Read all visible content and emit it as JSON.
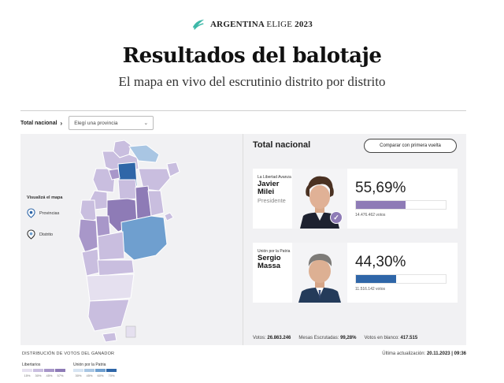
{
  "brand": {
    "name_bold": "ARGENTINA",
    "name_light": "ELIGE",
    "year": "2023"
  },
  "page": {
    "title": "Resultados del balotaje",
    "subtitle": "El mapa en vivo del escrutinio distrito por distrito"
  },
  "filters": {
    "scope_label": "Total nacional",
    "province_select": "Elegí una provincia"
  },
  "map_view": {
    "title": "Visualizá el mapa",
    "options": [
      "Provincias",
      "Distrito"
    ]
  },
  "results": {
    "heading": "Total nacional",
    "compare_button": "Comparar con primera vuelta",
    "candidates": [
      {
        "party": "La Libertad Avanza",
        "first_name": "Javier",
        "last_name": "Milei",
        "role": "Presidente",
        "percent_label": "55,69%",
        "percent": 55.69,
        "votes": "14.476.462 votos",
        "color": "#8e7bb6",
        "winner": true
      },
      {
        "party": "Unión por la Patria",
        "first_name": "Sergio",
        "last_name": "Massa",
        "role": "",
        "percent_label": "44,30%",
        "percent": 44.3,
        "votes": "11.516.142 votos",
        "color": "#2f66a8",
        "winner": false
      }
    ],
    "totals": {
      "votes_label": "Votos:",
      "votes_value": "26.863.246",
      "tables_label": "Mesas Escrutadas:",
      "tables_value": "99,28%",
      "blank_label": "Votos en blanco:",
      "blank_value": "417.515"
    }
  },
  "legend": {
    "title": "DISTRIBUCIÓN DE VOTOS DEL GANADOR",
    "groups": [
      {
        "name": "Libertarios",
        "colors": [
          "#e5e0ef",
          "#c9bedf",
          "#a897c9",
          "#8e7bb6"
        ],
        "ticks": [
          "15%",
          "30%",
          "45%",
          "57%"
        ]
      },
      {
        "name": "Unión por la Patria",
        "colors": [
          "#d6e4f2",
          "#a9c6e3",
          "#6f9fcf",
          "#2f66a8"
        ],
        "ticks": [
          "30%",
          "45%",
          "60%",
          "70%"
        ]
      }
    ]
  },
  "updated": {
    "label": "Última actualización:",
    "value": "20.11.2023 | 09:36"
  }
}
